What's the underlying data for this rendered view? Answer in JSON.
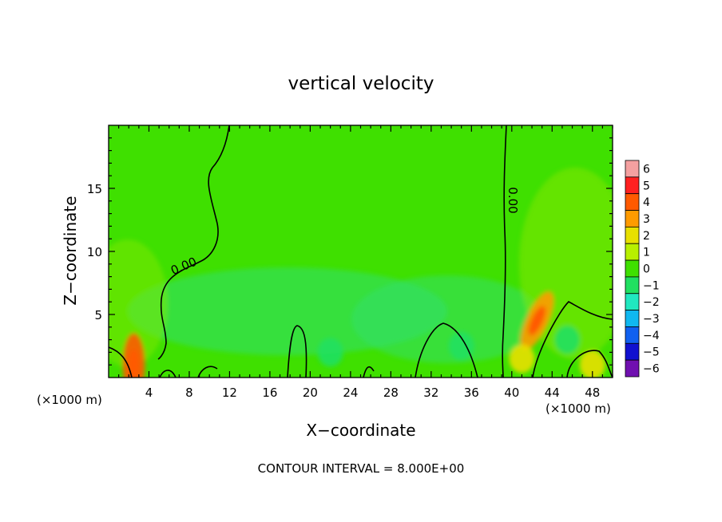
{
  "chart_data": {
    "type": "heatmap",
    "title": "vertical velocity",
    "xlabel": "X−coordinate",
    "ylabel": "Z−coordinate",
    "x_unit_left": "(×1000 m)",
    "x_unit_right": "(×1000 m)",
    "xlim": [
      0,
      50
    ],
    "ylim": [
      0,
      20
    ],
    "x_ticks": [
      4,
      8,
      12,
      16,
      20,
      24,
      28,
      32,
      36,
      40,
      44,
      48
    ],
    "y_ticks": [
      5,
      10,
      15
    ],
    "colorbar_levels": [
      6,
      5,
      4,
      3,
      2,
      1,
      0,
      -1,
      -2,
      -3,
      -4,
      -5,
      -6
    ],
    "colorbar_labels": [
      "6",
      "5",
      "4",
      "3",
      "2",
      "1",
      "0",
      "−1",
      "−2",
      "−3",
      "−4",
      "−5",
      "−6"
    ],
    "colorbar_colors": [
      "#f4a0a0",
      "#ff2020",
      "#ff5a00",
      "#ff9b00",
      "#e8e000",
      "#b8f000",
      "#3fe000",
      "#20e060",
      "#20e8c0",
      "#10b8f0",
      "#1060f0",
      "#1010d0",
      "#7010b0"
    ],
    "background_value": 0,
    "contour_label": "0.00",
    "contour_interval_text": "CONTOUR INTERVAL = 8.000E+00",
    "features": [
      {
        "x": 2.5,
        "z": 1.0,
        "value": 3.5,
        "note": "surface updraft"
      },
      {
        "x": 42.5,
        "z": 4.5,
        "value": 3.0,
        "note": "elevated updraft"
      },
      {
        "x": 41.0,
        "z": 1.5,
        "value": 2.0
      },
      {
        "x": 48.0,
        "z": 1.0,
        "value": 2.0
      },
      {
        "x": 45.5,
        "z": 3.0,
        "value": -1.5
      },
      {
        "x": 35.0,
        "z": 2.5,
        "value": -1.0
      },
      {
        "x": 22.0,
        "z": 2.0,
        "value": -0.8
      }
    ]
  }
}
